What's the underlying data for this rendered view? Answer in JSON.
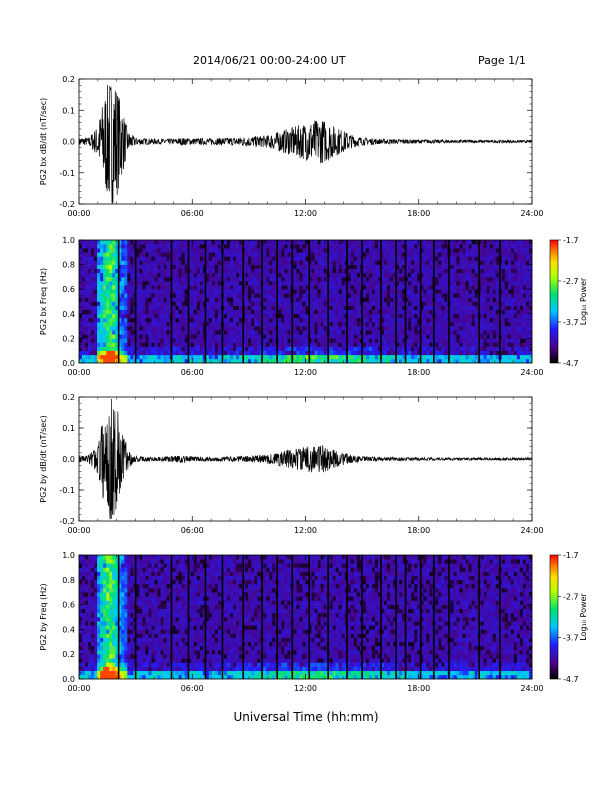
{
  "header": {
    "title": "2014/06/21   00:00-24:00 UT",
    "page": "Page 1/1"
  },
  "x_axis_title": "Universal Time (hh:mm)",
  "colors": {
    "line": "#000000",
    "background": "#ffffff"
  },
  "chart_data": [
    {
      "type": "line",
      "ylabel": "PG2 bx dB/dt (nT/sec)",
      "xlim": [
        0,
        24
      ],
      "ylim": [
        -0.2,
        0.2
      ],
      "x_ticks": [
        "00:00",
        "06:00",
        "12:00",
        "18:00",
        "24:00"
      ],
      "y_ticks": [
        "0.2",
        "0.1",
        "0.0",
        "-0.1",
        "-0.2"
      ],
      "series": [
        {
          "envelope_x": [
            0,
            0.5,
            1.0,
            1.3,
            1.6,
            1.9,
            2.2,
            2.6,
            3.0,
            4.0,
            5.0,
            5.5,
            6.0,
            7.0,
            8.0,
            9.0,
            10.0,
            10.5,
            11.0,
            11.5,
            12.0,
            12.5,
            13.0,
            13.5,
            14.0,
            14.5,
            15.0,
            16.0,
            18.0,
            20.0,
            22.0,
            24.0
          ],
          "envelope_amplitude": [
            0.012,
            0.012,
            0.05,
            0.14,
            0.2,
            0.2,
            0.13,
            0.03,
            0.012,
            0.008,
            0.008,
            0.012,
            0.01,
            0.01,
            0.012,
            0.015,
            0.02,
            0.03,
            0.04,
            0.05,
            0.06,
            0.07,
            0.07,
            0.05,
            0.035,
            0.02,
            0.012,
            0.008,
            0.006,
            0.005,
            0.004,
            0.004
          ]
        }
      ]
    },
    {
      "type": "heatmap",
      "ylabel": "PG2 bx Freq (Hz)",
      "xlim": [
        0,
        24
      ],
      "ylim": [
        0.0,
        1.0
      ],
      "x_ticks": [
        "00:00",
        "06:00",
        "12:00",
        "18:00",
        "24:00"
      ],
      "y_ticks": [
        "1.0",
        "0.8",
        "0.6",
        "0.4",
        "0.2",
        "0.0"
      ],
      "colorbar": {
        "label": "Log₁₀ Power",
        "ticks": [
          "-1.7",
          "-2.7",
          "-3.7",
          "-4.7"
        ],
        "range": [
          -4.7,
          -1.7
        ]
      },
      "data_gaps_hours": [
        2.1,
        3.0,
        4.9,
        5.8,
        6.7,
        7.6,
        8.7,
        9.7,
        10.5,
        11.3,
        12.2,
        13.2,
        14.2,
        15.0,
        16.0,
        16.8,
        17.3,
        18.1,
        18.8,
        19.6,
        21.2,
        22.3
      ]
    },
    {
      "type": "line",
      "ylabel": "PG2 by dB/dt (nT/sec)",
      "xlim": [
        0,
        24
      ],
      "ylim": [
        -0.2,
        0.2
      ],
      "x_ticks": [
        "00:00",
        "06:00",
        "12:00",
        "18:00",
        "24:00"
      ],
      "y_ticks": [
        "0.2",
        "0.1",
        "0.0",
        "-0.1",
        "-0.2"
      ],
      "series": [
        {
          "envelope_x": [
            0,
            0.5,
            1.0,
            1.3,
            1.6,
            1.9,
            2.2,
            2.6,
            3.0,
            4.0,
            5.0,
            5.5,
            6.0,
            7.0,
            8.0,
            9.0,
            10.0,
            10.5,
            11.0,
            11.5,
            12.0,
            12.5,
            13.0,
            13.5,
            14.0,
            14.5,
            15.0,
            16.0,
            18.0,
            20.0,
            22.0,
            24.0
          ],
          "envelope_amplitude": [
            0.012,
            0.012,
            0.05,
            0.14,
            0.2,
            0.2,
            0.13,
            0.03,
            0.01,
            0.006,
            0.01,
            0.012,
            0.008,
            0.007,
            0.008,
            0.01,
            0.015,
            0.02,
            0.03,
            0.035,
            0.04,
            0.045,
            0.045,
            0.03,
            0.02,
            0.012,
            0.008,
            0.006,
            0.005,
            0.004,
            0.004,
            0.004
          ]
        }
      ]
    },
    {
      "type": "heatmap",
      "ylabel": "PG2 by Freq (Hz)",
      "xlim": [
        0,
        24
      ],
      "ylim": [
        0.0,
        1.0
      ],
      "x_ticks": [
        "00:00",
        "06:00",
        "12:00",
        "18:00",
        "24:00"
      ],
      "y_ticks": [
        "1.0",
        "0.8",
        "0.6",
        "0.4",
        "0.2",
        "0.0"
      ],
      "colorbar": {
        "label": "Log₁₀ Power",
        "ticks": [
          "-1.7",
          "-2.7",
          "-3.7",
          "-4.7"
        ],
        "range": [
          -4.7,
          -1.7
        ]
      },
      "data_gaps_hours": [
        2.1,
        3.0,
        4.9,
        5.8,
        6.7,
        7.6,
        8.7,
        9.7,
        10.5,
        11.3,
        12.2,
        13.2,
        14.2,
        15.0,
        16.0,
        16.8,
        17.3,
        18.1,
        18.8,
        19.6,
        21.2,
        22.3
      ]
    }
  ]
}
